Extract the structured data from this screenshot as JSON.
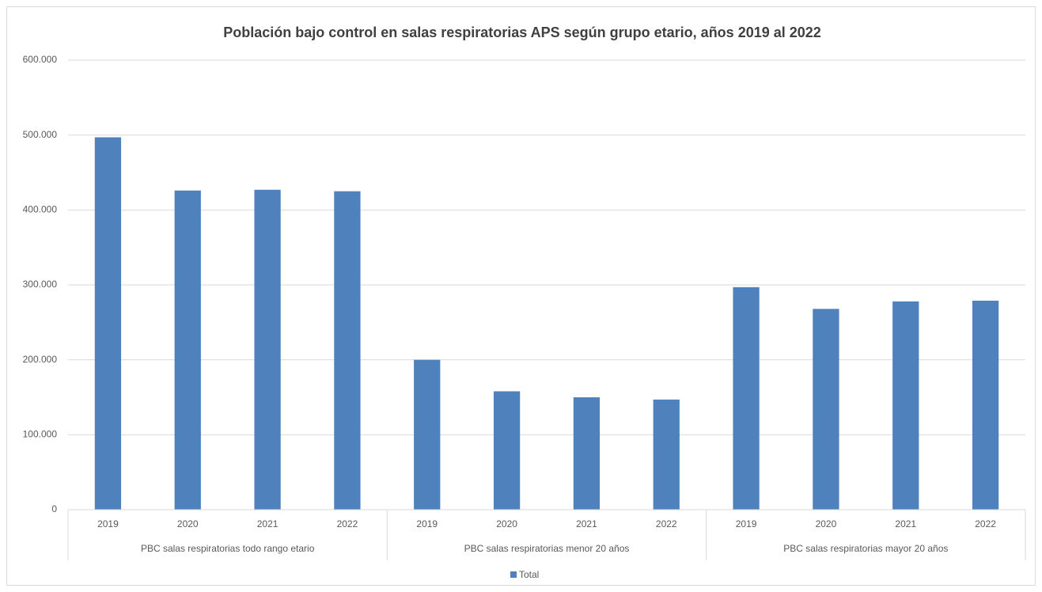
{
  "chart_data": {
    "type": "bar",
    "title": "Población bajo control en salas respiratorias APS según grupo etario, años 2019 al 2022",
    "categories": [
      "2019",
      "2020",
      "2021",
      "2022",
      "2019",
      "2020",
      "2021",
      "2022",
      "2019",
      "2020",
      "2021",
      "2022"
    ],
    "groups": [
      "PBC salas respiratorias todo rango etario",
      "PBC salas respiratorias menor 20 años",
      "PBC salas respiratorias mayor 20 años"
    ],
    "series": [
      {
        "name": "Total",
        "color": "#4f81bd",
        "values": [
          497000,
          426000,
          427000,
          425000,
          200000,
          158000,
          150000,
          147000,
          297000,
          268000,
          278000,
          279000
        ]
      }
    ],
    "ylim": [
      0,
      600000
    ],
    "yticks": [
      0,
      {
        "value": 100000,
        "label": "100.000"
      },
      {
        "value": 200000,
        "label": "200.000"
      },
      {
        "value": 300000,
        "label": "300.000"
      },
      {
        "value": 400000,
        "label": "400.000"
      },
      {
        "value": 500000,
        "label": "500.000"
      },
      {
        "value": 600000,
        "label": "600.000"
      }
    ],
    "grid": true,
    "legend": "bottom"
  }
}
